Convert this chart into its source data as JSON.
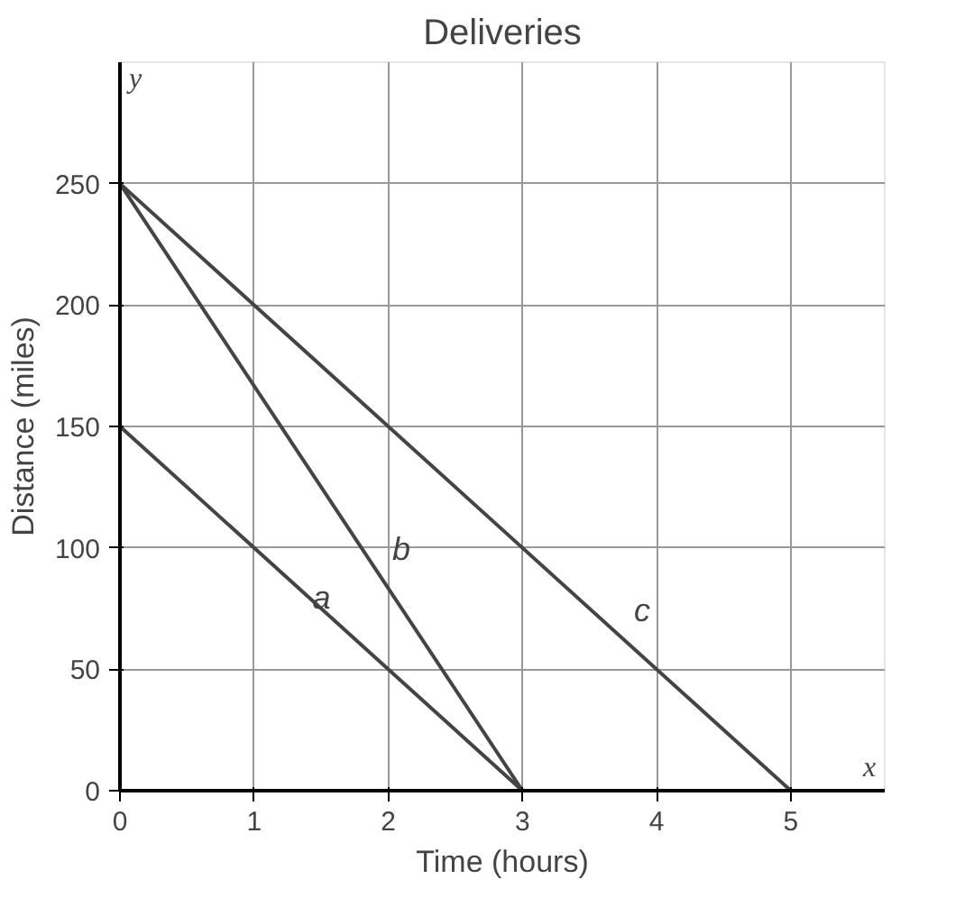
{
  "chart_data": {
    "type": "line",
    "title": "Deliveries",
    "xlabel": "Time (hours)",
    "ylabel": "Distance (miles)",
    "xlim": [
      0,
      5.7
    ],
    "ylim": [
      0,
      300
    ],
    "xticks": [
      0,
      1,
      2,
      3,
      4,
      5
    ],
    "yticks": [
      0,
      50,
      100,
      150,
      200,
      250
    ],
    "grid": true,
    "marker": "none",
    "line_style": "solid",
    "annotations": [
      "x",
      "y"
    ],
    "series": [
      {
        "name": "a",
        "color": "#444444",
        "x": [
          0,
          3
        ],
        "values": [
          150,
          0
        ]
      },
      {
        "name": "b",
        "color": "#444444",
        "x": [
          0,
          3
        ],
        "values": [
          250,
          0
        ]
      },
      {
        "name": "c",
        "color": "#444444",
        "x": [
          0,
          5
        ],
        "values": [
          250,
          0
        ]
      }
    ]
  }
}
